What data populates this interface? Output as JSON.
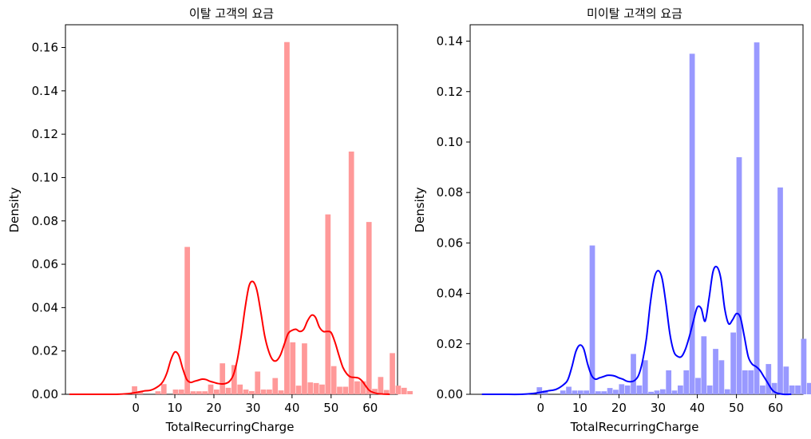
{
  "chart_data": [
    {
      "type": "histogram+kde",
      "title": "이탈 고객의 요금",
      "xlabel": "TotalRecurringCharge",
      "ylabel": "Density",
      "color": "#ff0000",
      "bar_color": "#ff9999",
      "xlim": [
        -18,
        67
      ],
      "ylim": [
        0,
        0.1705
      ],
      "xticks": [
        0,
        10,
        20,
        30,
        40,
        50,
        60
      ],
      "yticks": [
        0.0,
        0.02,
        0.04,
        0.06,
        0.08,
        0.1,
        0.12,
        0.14,
        0.16
      ],
      "ytick_labels": [
        "0.00",
        "0.02",
        "0.04",
        "0.06",
        "0.08",
        "0.10",
        "0.12",
        "0.14",
        "0.16"
      ],
      "bins": {
        "start": -1.0,
        "width": 1.5,
        "density": [
          0.0037,
          0.0014,
          0,
          0,
          0.0014,
          0.0047,
          0,
          0.0022,
          0.0022,
          0.068,
          0.0014,
          0.0014,
          0.0014,
          0.0045,
          0.0022,
          0.0143,
          0.003,
          0.0135,
          0.0045,
          0.0022,
          0.0015,
          0.0105,
          0.0022,
          0.0022,
          0.0075,
          0.0018,
          0.1625,
          0.024,
          0.004,
          0.0235,
          0.0055,
          0.0052,
          0.0045,
          0.083,
          0.013,
          0.0035,
          0.0035,
          0.112,
          0.006,
          0.006,
          0.0795,
          0.0025,
          0.008,
          0.002,
          0.019,
          0.004,
          0.003,
          0.0015
        ]
      },
      "kde": {
        "x": [
          -17,
          -10,
          -5,
          -2,
          0,
          2,
          4,
          6,
          7,
          8,
          9,
          10,
          11,
          12,
          13,
          14,
          15,
          16,
          17,
          18,
          19,
          20,
          21,
          22,
          23,
          24,
          25,
          26,
          27,
          28,
          29,
          30,
          31,
          32,
          33,
          34,
          35,
          36,
          37,
          38,
          39,
          40,
          41,
          42,
          43,
          44,
          45,
          46,
          47,
          48,
          49,
          50,
          51,
          52,
          53,
          54,
          55,
          56,
          57,
          58,
          59,
          60,
          62,
          65
        ],
        "y": [
          0,
          0,
          0,
          0.0003,
          0.0008,
          0.0015,
          0.002,
          0.004,
          0.006,
          0.01,
          0.016,
          0.0195,
          0.018,
          0.012,
          0.007,
          0.0055,
          0.006,
          0.0065,
          0.007,
          0.0068,
          0.006,
          0.0055,
          0.005,
          0.0048,
          0.005,
          0.006,
          0.009,
          0.016,
          0.027,
          0.04,
          0.05,
          0.052,
          0.048,
          0.038,
          0.027,
          0.02,
          0.016,
          0.0155,
          0.018,
          0.023,
          0.028,
          0.0295,
          0.03,
          0.029,
          0.03,
          0.034,
          0.0365,
          0.0355,
          0.031,
          0.029,
          0.029,
          0.0285,
          0.024,
          0.018,
          0.0125,
          0.0095,
          0.008,
          0.0078,
          0.0075,
          0.006,
          0.0035,
          0.0015,
          0.0003,
          0
        ]
      }
    },
    {
      "type": "histogram+kde",
      "title": "미이탈 고객의 요금",
      "xlabel": "TotalRecurringCharge",
      "ylabel": "Density",
      "color": "#0000ff",
      "bar_color": "#9999ff",
      "xlim": [
        -18,
        67
      ],
      "ylim": [
        0,
        0.1465
      ],
      "xticks": [
        0,
        10,
        20,
        30,
        40,
        50,
        60
      ],
      "yticks": [
        0.0,
        0.02,
        0.04,
        0.06,
        0.08,
        0.1,
        0.12,
        0.14
      ],
      "ytick_labels": [
        "0.00",
        "0.02",
        "0.04",
        "0.06",
        "0.08",
        "0.10",
        "0.12",
        "0.14"
      ],
      "bins": {
        "start": -1.0,
        "width": 1.5,
        "density": [
          0.0028,
          0.0015,
          0,
          0,
          0.0015,
          0.003,
          0.0015,
          0.0015,
          0.0015,
          0.059,
          0.0012,
          0.0012,
          0.0025,
          0.0018,
          0.004,
          0.0035,
          0.016,
          0.0035,
          0.0135,
          0.001,
          0.0015,
          0.002,
          0.0095,
          0.0015,
          0.0035,
          0.0095,
          0.135,
          0.0065,
          0.023,
          0.0035,
          0.018,
          0.0135,
          0.002,
          0.0245,
          0.094,
          0.0095,
          0.0095,
          0.1395,
          0.0035,
          0.012,
          0.0045,
          0.082,
          0.011,
          0.0035,
          0.0035,
          0.022,
          0.0045,
          0.0035,
          0.0012
        ]
      },
      "kde": {
        "x": [
          -15,
          -10,
          -5,
          -2,
          0,
          2,
          4,
          6,
          7,
          8,
          9,
          10,
          11,
          12,
          13,
          14,
          15,
          16,
          17,
          18,
          19,
          20,
          21,
          22,
          23,
          24,
          25,
          26,
          27,
          28,
          29,
          30,
          31,
          32,
          33,
          34,
          35,
          36,
          37,
          38,
          39,
          40,
          41,
          42,
          43,
          44,
          45,
          46,
          47,
          48,
          49,
          50,
          51,
          52,
          53,
          54,
          55,
          56,
          57,
          58,
          59,
          60,
          62,
          64
        ],
        "y": [
          0,
          0,
          0,
          0.0003,
          0.0008,
          0.0014,
          0.002,
          0.004,
          0.006,
          0.011,
          0.017,
          0.0195,
          0.018,
          0.012,
          0.0075,
          0.006,
          0.0065,
          0.007,
          0.0075,
          0.0075,
          0.0072,
          0.0065,
          0.006,
          0.0052,
          0.005,
          0.0055,
          0.0075,
          0.013,
          0.022,
          0.036,
          0.046,
          0.049,
          0.046,
          0.036,
          0.024,
          0.017,
          0.015,
          0.015,
          0.018,
          0.023,
          0.029,
          0.0345,
          0.034,
          0.029,
          0.038,
          0.0485,
          0.0505,
          0.046,
          0.034,
          0.028,
          0.0295,
          0.032,
          0.0305,
          0.023,
          0.015,
          0.012,
          0.011,
          0.0095,
          0.007,
          0.0045,
          0.002,
          0.0007,
          0,
          0
        ]
      }
    }
  ]
}
